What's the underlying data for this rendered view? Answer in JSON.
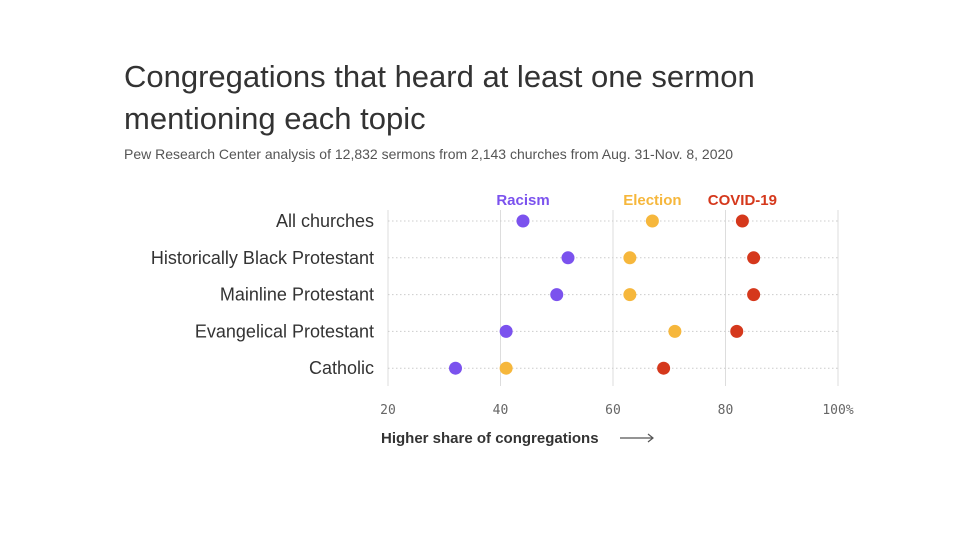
{
  "header": {
    "title": "Congregations that heard at least one sermon mentioning each topic",
    "subtitle": "Pew Research Center analysis of 12,832 sermons from 2,143 churches from Aug. 31-Nov. 8, 2020"
  },
  "chart_data": {
    "type": "scatter",
    "title": "Congregations that heard at least one sermon mentioning each topic",
    "subtitle": "Pew Research Center analysis of 12,832 sermons from 2,143 churches from Aug. 31-Nov. 8, 2020",
    "xlabel": "Higher share of congregations",
    "ylabel": "",
    "xlim": [
      20,
      100
    ],
    "xticks": [
      20,
      40,
      60,
      80,
      100
    ],
    "xtick_labels": [
      "20",
      "40",
      "60",
      "80",
      "100%"
    ],
    "grid": true,
    "legend_placement": "top",
    "categories": [
      "All churches",
      "Historically Black Protestant",
      "Mainline Protestant",
      "Evangelical Protestant",
      "Catholic"
    ],
    "series": [
      {
        "name": "Racism",
        "color": "#7b52ee",
        "values": [
          44,
          52,
          50,
          41,
          32
        ]
      },
      {
        "name": "Election",
        "color": "#f6b73c",
        "values": [
          67,
          63,
          63,
          71,
          41
        ]
      },
      {
        "name": "COVID-19",
        "color": "#d5381c",
        "values": [
          83,
          85,
          85,
          82,
          69
        ]
      }
    ]
  }
}
